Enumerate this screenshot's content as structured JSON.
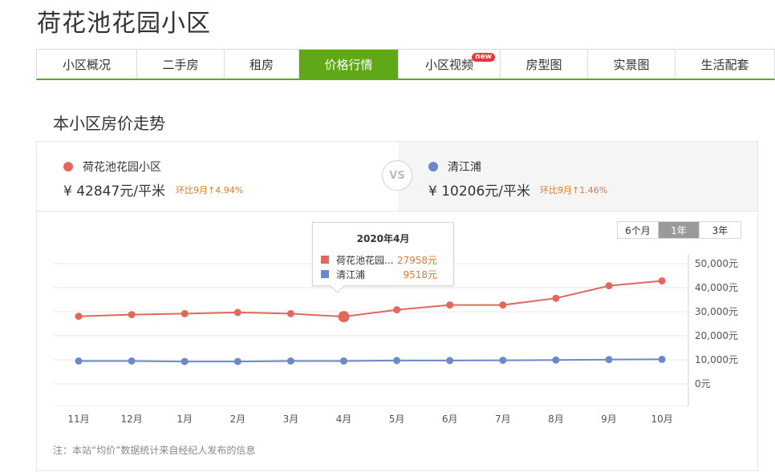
{
  "page": {
    "title": "荷花池花园小区"
  },
  "tabs": [
    {
      "label": "小区概况",
      "active": false
    },
    {
      "label": "二手房",
      "active": false
    },
    {
      "label": "租房",
      "active": false
    },
    {
      "label": "价格行情",
      "active": true
    },
    {
      "label": "小区视频",
      "active": false,
      "badge": "new"
    },
    {
      "label": "房型图",
      "active": false
    },
    {
      "label": "实景图",
      "active": false
    },
    {
      "label": "生活配套",
      "active": false
    }
  ],
  "section": {
    "title": "本小区房价走势"
  },
  "compare": {
    "left": {
      "name": "荷花池花园小区",
      "price": "¥ 42847元/平米",
      "change": "环比9月↑4.94%",
      "color": "#e0695c"
    },
    "vs": "VS",
    "right": {
      "name": "清江浦",
      "price": "¥ 10206元/平米",
      "change": "环比9月↑1.46%",
      "color": "#6b88c8"
    }
  },
  "range": {
    "options": [
      "6个月",
      "1年",
      "3年"
    ],
    "selected": "1年"
  },
  "tooltip": {
    "title": "2020年4月",
    "rows": [
      {
        "name": "荷花池花园...",
        "value": "27958元",
        "color": "#e0695c"
      },
      {
        "name": "清江浦",
        "value": "9518元",
        "color": "#6b88c8"
      }
    ]
  },
  "chart_data": {
    "type": "line",
    "categories": [
      "11月",
      "12月",
      "1月",
      "2月",
      "3月",
      "4月",
      "5月",
      "6月",
      "7月",
      "8月",
      "9月",
      "10月"
    ],
    "series": [
      {
        "name": "荷花池花园小区",
        "color": "#e0695c",
        "values": [
          28100,
          28800,
          29200,
          29700,
          29200,
          27958,
          30800,
          32800,
          32800,
          35600,
          40800,
          42847
        ]
      },
      {
        "name": "清江浦",
        "color": "#6b88c8",
        "values": [
          9500,
          9500,
          9300,
          9300,
          9500,
          9518,
          9700,
          9700,
          9800,
          9900,
          10100,
          10206
        ]
      }
    ],
    "yticks": [
      "50,000元",
      "40,000元",
      "30,000元",
      "20,000元",
      "10,000元",
      "0元"
    ],
    "ylim": [
      0,
      50000
    ],
    "highlight_index": 5,
    "grid": true,
    "yaxis_position": "right"
  },
  "note": "注：本站“均价”数据统计来自经纪人发布的信息"
}
